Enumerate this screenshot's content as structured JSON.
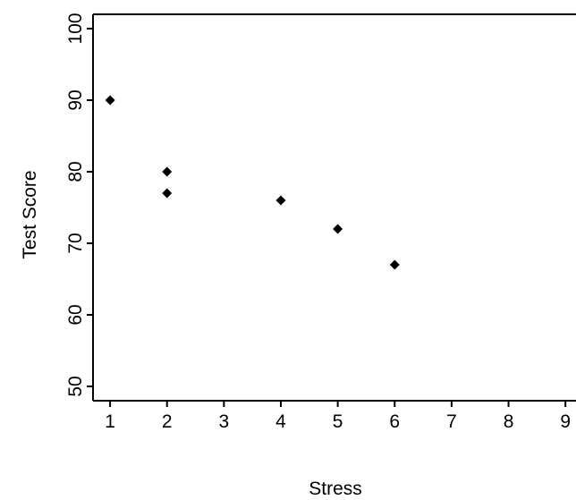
{
  "chart_data": {
    "type": "scatter",
    "title": "",
    "xlabel": "Stress",
    "ylabel": "Test Score",
    "xlim": [
      0.7,
      9.5
    ],
    "ylim": [
      48,
      102
    ],
    "xticks": [
      1,
      2,
      3,
      4,
      5,
      6,
      7,
      8,
      9
    ],
    "yticks": [
      50,
      60,
      70,
      80,
      90,
      100
    ],
    "grid": false,
    "marker": "diamond",
    "colors": {
      "marker": "#000000",
      "axis": "#000000"
    },
    "points": [
      {
        "x": 1,
        "y": 90
      },
      {
        "x": 2,
        "y": 80
      },
      {
        "x": 2,
        "y": 77
      },
      {
        "x": 4,
        "y": 76
      },
      {
        "x": 5,
        "y": 72
      },
      {
        "x": 6,
        "y": 67
      }
    ]
  }
}
